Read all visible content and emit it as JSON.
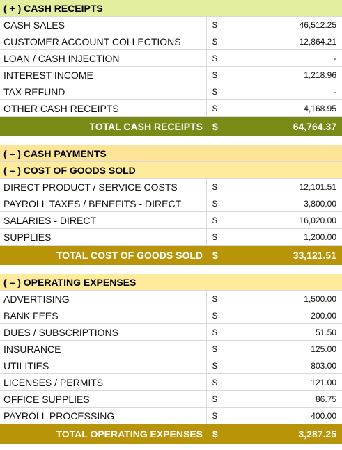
{
  "receipts": {
    "header": "( + )  CASH RECEIPTS",
    "rows": [
      {
        "label": "CASH SALES",
        "cur": "$",
        "amount": "46,512.25"
      },
      {
        "label": "CUSTOMER ACCOUNT COLLECTIONS",
        "cur": "$",
        "amount": "12,864.21"
      },
      {
        "label": "LOAN / CASH INJECTION",
        "cur": "$",
        "amount": "-"
      },
      {
        "label": "INTEREST INCOME",
        "cur": "$",
        "amount": "1,218.96"
      },
      {
        "label": "TAX REFUND",
        "cur": "$",
        "amount": "-"
      },
      {
        "label": "OTHER CASH RECEIPTS",
        "cur": "$",
        "amount": "4,168.95"
      }
    ],
    "total_label": "TOTAL CASH RECEIPTS",
    "total_cur": "$",
    "total_amount": "64,764.37"
  },
  "payments": {
    "header": "( – )  CASH PAYMENTS",
    "cogs_header": "( – )  COST OF GOODS SOLD",
    "cogs_rows": [
      {
        "label": "DIRECT PRODUCT / SERVICE COSTS",
        "cur": "$",
        "amount": "12,101.51"
      },
      {
        "label": "PAYROLL TAXES / BENEFITS - DIRECT",
        "cur": "$",
        "amount": "3,800.00"
      },
      {
        "label": "SALARIES - DIRECT",
        "cur": "$",
        "amount": "16,020.00"
      },
      {
        "label": "SUPPLIES",
        "cur": "$",
        "amount": "1,200.00"
      }
    ],
    "cogs_total_label": "TOTAL COST OF GOODS SOLD",
    "cogs_total_cur": "$",
    "cogs_total_amount": "33,121.51"
  },
  "opex": {
    "header": "( – )  OPERATING EXPENSES",
    "rows": [
      {
        "label": "ADVERTISING",
        "cur": "$",
        "amount": "1,500.00"
      },
      {
        "label": "BANK FEES",
        "cur": "$",
        "amount": "200.00"
      },
      {
        "label": "DUES / SUBSCRIPTIONS",
        "cur": "$",
        "amount": "51.50"
      },
      {
        "label": "INSURANCE",
        "cur": "$",
        "amount": "125.00"
      },
      {
        "label": "UTILITIES",
        "cur": "$",
        "amount": "803.00"
      },
      {
        "label": "LICENSES / PERMITS",
        "cur": "$",
        "amount": "121.00"
      },
      {
        "label": "OFFICE SUPPLIES",
        "cur": "$",
        "amount": "86.75"
      },
      {
        "label": "PAYROLL PROCESSING",
        "cur": "$",
        "amount": "400.00"
      }
    ],
    "total_label": "TOTAL OPERATING EXPENSES",
    "total_cur": "$",
    "total_amount": "3,287.25"
  },
  "colors": {
    "receipts_header": "#e5ed9f",
    "receipts_total": "#7a8a16",
    "payments_header": "#fde496",
    "payments_total": "#b89409"
  }
}
